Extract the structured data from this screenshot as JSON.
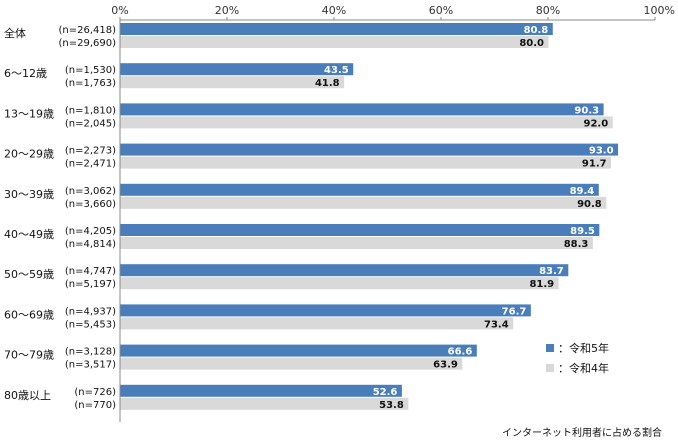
{
  "chart_data": {
    "type": "bar",
    "orientation": "horizontal",
    "categories": [
      "全体",
      "6～12歳",
      "13～19歳",
      "20～29歳",
      "30～39歳",
      "40～49歳",
      "50～59歳",
      "60～69歳",
      "70～79歳",
      "80歳以上"
    ],
    "series": [
      {
        "name": "令和5年",
        "legend_label": "：令和5年",
        "color": "#4a7ebb",
        "values": [
          80.8,
          43.5,
          90.3,
          93.0,
          89.4,
          89.5,
          83.7,
          76.7,
          66.6,
          52.6
        ],
        "value_labels": [
          "80.8",
          "43.5",
          "90.3",
          "93.0",
          "89.4",
          "89.5",
          "83.7",
          "76.7",
          "66.6",
          "52.6"
        ],
        "n_labels": [
          "(n=26,418)",
          "(n=1,530)",
          "(n=1,810)",
          "(n=2,273)",
          "(n=3,062)",
          "(n=4,205)",
          "(n=4,747)",
          "(n=4,937)",
          "(n=3,128)",
          "(n=726)"
        ]
      },
      {
        "name": "令和4年",
        "legend_label": "：令和4年",
        "color": "#d9d9d9",
        "values": [
          80.0,
          41.8,
          92.0,
          91.7,
          90.8,
          88.3,
          81.9,
          73.4,
          63.9,
          53.8
        ],
        "value_labels": [
          "80.0",
          "41.8",
          "92.0",
          "91.7",
          "90.8",
          "88.3",
          "81.9",
          "73.4",
          "63.9",
          "53.8"
        ],
        "n_labels": [
          "(n=29,690)",
          "(n=1,763)",
          "(n=2,045)",
          "(n=2,471)",
          "(n=3,660)",
          "(n=4,814)",
          "(n=5,197)",
          "(n=5,453)",
          "(n=3,517)",
          "(n=770)"
        ]
      }
    ],
    "xlim": [
      0,
      100
    ],
    "x_ticks": [
      "0%",
      "20%",
      "40%",
      "60%",
      "80%",
      "100%"
    ],
    "x_axis_position": "top",
    "grid": false,
    "legend_position": "bottom-right",
    "footnote": "インターネット利用者に占める割合"
  }
}
